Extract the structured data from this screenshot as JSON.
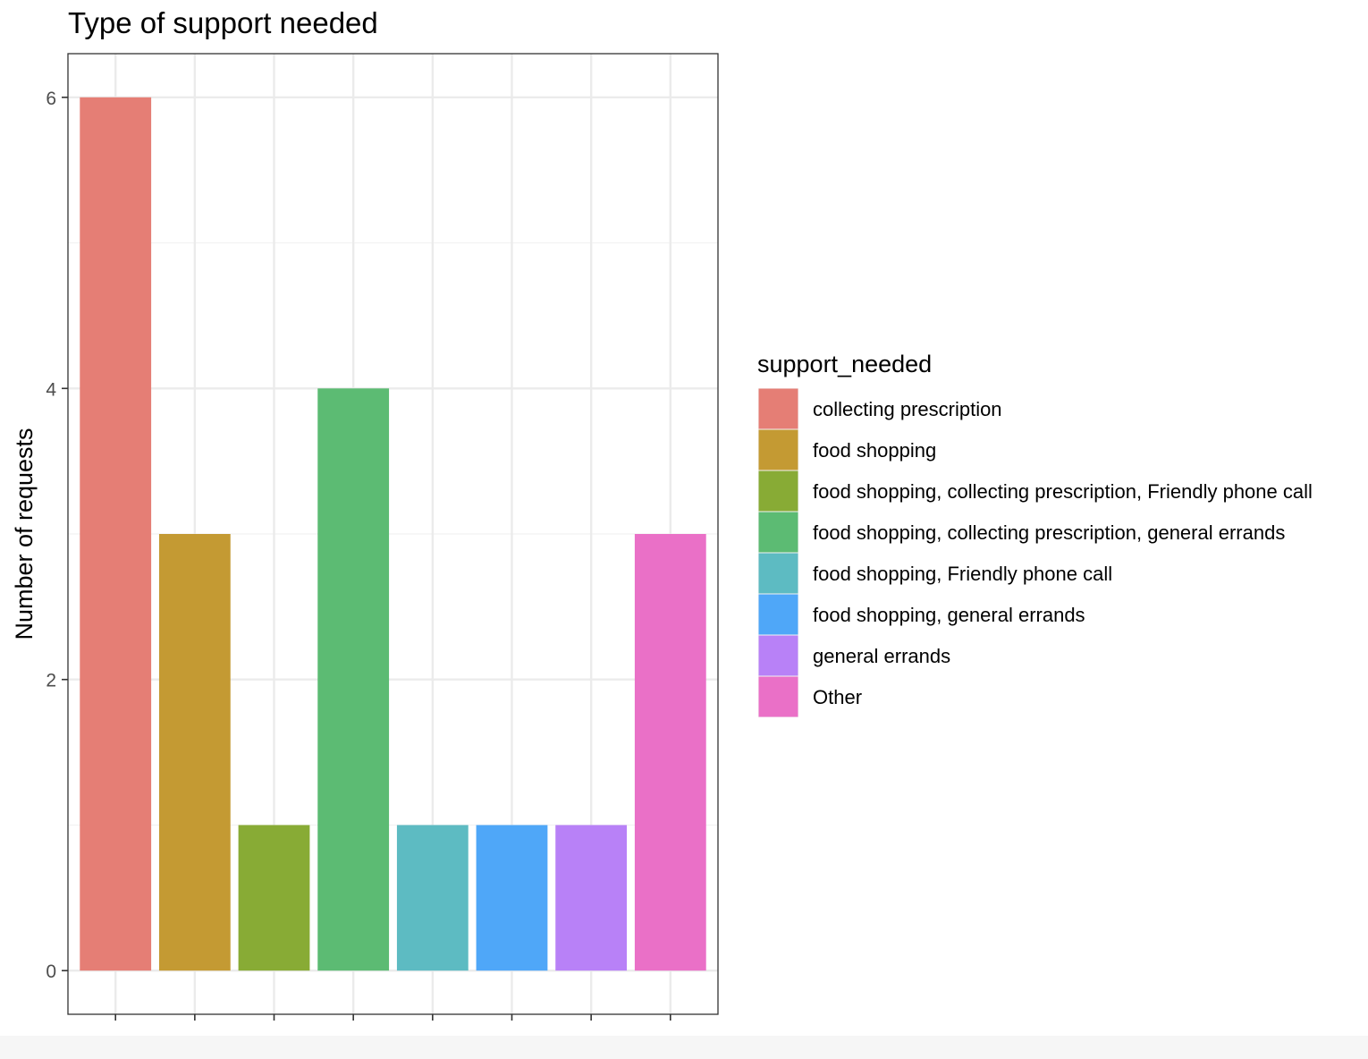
{
  "chart_data": {
    "type": "bar",
    "title": "Type of support needed",
    "xlabel": "",
    "ylabel": "Number of requests",
    "categories": [
      "collecting prescription",
      "food shopping",
      "food shopping, collecting prescription, Friendly phone call",
      "food shopping, collecting prescription, general errands",
      "food shopping, Friendly phone call",
      "food shopping, general errands",
      "general errands",
      "Other"
    ],
    "values": [
      6,
      3,
      1,
      4,
      1,
      1,
      1,
      3
    ],
    "colors": [
      "#E57E75",
      "#C49A33",
      "#88AB35",
      "#5CBB73",
      "#5DBBC2",
      "#4FA7F8",
      "#B881F7",
      "#EA70C7"
    ],
    "ylim": [
      -0.3,
      6.3
    ],
    "yticks": [
      0,
      2,
      4,
      6
    ],
    "ytick_labels": [
      "0",
      "2",
      "4",
      "6"
    ],
    "grid": true,
    "legend": {
      "title": "support_needed",
      "position": "right"
    }
  }
}
